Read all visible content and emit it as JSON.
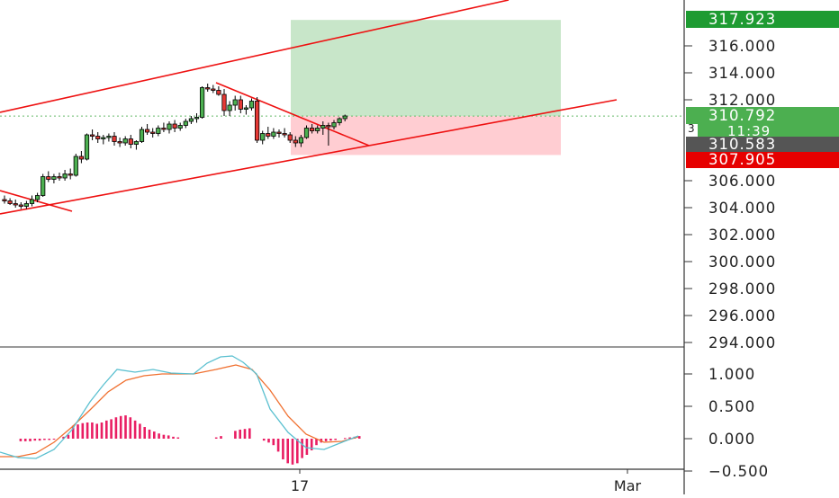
{
  "chart_data": [
    {
      "type": "candlestick",
      "title": "",
      "y_axis_ticks": [
        294,
        296,
        298,
        300,
        302,
        304,
        306,
        312,
        314,
        316
      ],
      "y_axis_tick_labels": [
        "294.000",
        "296.000",
        "298.000",
        "300.000",
        "302.000",
        "304.000",
        "306.000",
        "312.000",
        "314.000",
        "316.000"
      ],
      "ylim": [
        293.8,
        319.5
      ],
      "x_axis_labels": [
        "17",
        "Mar"
      ],
      "grid": false,
      "price_badges": {
        "target": {
          "label": "317.923",
          "value": 317.923,
          "color": "#1e9b32"
        },
        "last": {
          "label": "310.792",
          "value": 310.792,
          "color": "#4caf50"
        },
        "countdown": {
          "label": "11:39",
          "color": "#4caf50"
        },
        "marker": {
          "label": "3"
        },
        "current": {
          "label": "310.583",
          "value": 310.583,
          "color": "#555555"
        },
        "stop": {
          "label": "307.905",
          "value": 307.905,
          "color": "#e60000"
        }
      },
      "position": {
        "entry": 310.792,
        "target": 317.923,
        "stop": 307.905,
        "profit_color": "#c8e6c9",
        "loss_color": "#ffcdd2"
      },
      "trendline_color": "#ee1111",
      "candles": [
        [
          304.6,
          304.9,
          304.3,
          304.5
        ],
        [
          304.5,
          304.7,
          304.2,
          304.3
        ],
        [
          304.3,
          304.6,
          304.0,
          304.2
        ],
        [
          304.2,
          304.4,
          303.9,
          304.1
        ],
        [
          304.1,
          304.5,
          303.9,
          304.3
        ],
        [
          304.3,
          304.9,
          304.1,
          304.6
        ],
        [
          304.6,
          305.1,
          304.4,
          304.9
        ],
        [
          304.9,
          306.5,
          304.8,
          306.3
        ],
        [
          306.3,
          306.7,
          305.9,
          306.1
        ],
        [
          306.1,
          306.5,
          305.8,
          306.3
        ],
        [
          306.3,
          306.6,
          306.0,
          306.2
        ],
        [
          306.2,
          306.8,
          306.0,
          306.5
        ],
        [
          306.5,
          306.9,
          306.1,
          306.4
        ],
        [
          306.4,
          308.0,
          306.3,
          307.8
        ],
        [
          307.8,
          308.2,
          307.3,
          307.6
        ],
        [
          307.6,
          309.5,
          307.5,
          309.4
        ],
        [
          309.4,
          309.8,
          309.0,
          309.3
        ],
        [
          309.3,
          309.6,
          308.8,
          309.1
        ],
        [
          309.1,
          309.4,
          308.7,
          309.2
        ],
        [
          309.2,
          309.5,
          308.9,
          309.3
        ],
        [
          309.3,
          309.6,
          308.6,
          308.9
        ],
        [
          308.9,
          309.2,
          308.5,
          308.8
        ],
        [
          308.8,
          309.3,
          308.6,
          309.1
        ],
        [
          309.1,
          309.4,
          308.4,
          308.7
        ],
        [
          308.7,
          309.0,
          308.3,
          308.9
        ],
        [
          308.9,
          310.0,
          308.8,
          309.8
        ],
        [
          309.8,
          310.2,
          309.4,
          309.6
        ],
        [
          309.6,
          309.9,
          309.2,
          309.5
        ],
        [
          309.5,
          310.1,
          309.3,
          309.9
        ],
        [
          309.9,
          310.3,
          309.6,
          309.8
        ],
        [
          309.8,
          310.4,
          309.5,
          310.2
        ],
        [
          310.2,
          310.5,
          309.6,
          309.9
        ],
        [
          309.9,
          310.3,
          309.7,
          310.1
        ],
        [
          310.1,
          310.6,
          309.9,
          310.4
        ],
        [
          310.4,
          310.8,
          310.2,
          310.6
        ],
        [
          310.6,
          311.0,
          310.3,
          310.7
        ],
        [
          310.7,
          313.0,
          310.6,
          312.9
        ],
        [
          312.9,
          313.2,
          312.6,
          312.8
        ],
        [
          312.8,
          313.1,
          312.5,
          312.7
        ],
        [
          312.7,
          313.0,
          312.3,
          312.4
        ],
        [
          312.4,
          312.8,
          310.8,
          311.2
        ],
        [
          311.2,
          311.9,
          310.8,
          311.6
        ],
        [
          311.6,
          312.3,
          311.2,
          312.0
        ],
        [
          312.0,
          312.3,
          311.0,
          311.3
        ],
        [
          311.3,
          311.6,
          310.9,
          311.4
        ],
        [
          311.4,
          312.1,
          311.2,
          311.9
        ],
        [
          311.9,
          312.2,
          308.8,
          309.0
        ],
        [
          309.0,
          309.7,
          308.7,
          309.5
        ],
        [
          309.5,
          310.0,
          309.1,
          309.3
        ],
        [
          309.3,
          309.9,
          309.1,
          309.6
        ],
        [
          309.6,
          309.8,
          309.2,
          309.5
        ],
        [
          309.5,
          309.9,
          309.2,
          309.4
        ],
        [
          309.4,
          309.6,
          308.8,
          309.0
        ],
        [
          309.0,
          309.3,
          308.5,
          308.8
        ],
        [
          308.8,
          309.4,
          308.5,
          309.2
        ],
        [
          309.2,
          310.1,
          309.1,
          309.9
        ],
        [
          309.9,
          310.2,
          309.5,
          309.7
        ],
        [
          309.7,
          310.1,
          309.5,
          309.9
        ],
        [
          309.9,
          310.4,
          309.4,
          310.1
        ],
        [
          310.1,
          310.3,
          308.6,
          310.0
        ],
        [
          310.0,
          310.5,
          309.8,
          310.3
        ],
        [
          310.3,
          310.7,
          310.1,
          310.6
        ],
        [
          310.6,
          310.9,
          310.4,
          310.8
        ]
      ],
      "macd": {
        "y_axis_ticks": [
          1.0,
          0.5,
          0.0,
          -0.5
        ],
        "y_axis_tick_labels": [
          "1.000",
          "0.500",
          "0.000",
          "−0.500"
        ],
        "ylim": [
          -0.55,
          1.45
        ],
        "macd_line_color": "#5bc0d0",
        "signal_line_color": "#f07030",
        "histogram_color": "#e91e63",
        "histogram": [
          0.0,
          0.0,
          0.0,
          -0.04,
          -0.04,
          -0.04,
          -0.03,
          -0.03,
          -0.02,
          -0.02,
          -0.01,
          0.0,
          0.03,
          0.06,
          0.2,
          0.22,
          0.24,
          0.25,
          0.25,
          0.23,
          0.25,
          0.28,
          0.3,
          0.33,
          0.35,
          0.36,
          0.33,
          0.28,
          0.23,
          0.18,
          0.14,
          0.11,
          0.08,
          0.06,
          0.05,
          0.03,
          0.02,
          0.0,
          0.0,
          0.0,
          0.0,
          0.0,
          0.0,
          0.0,
          0.02,
          0.04,
          0.0,
          0.0,
          0.12,
          0.14,
          0.15,
          0.16,
          0.0,
          0.0,
          -0.03,
          -0.06,
          -0.1,
          -0.2,
          -0.32,
          -0.38,
          -0.4,
          -0.38,
          -0.3,
          -0.25,
          -0.18,
          -0.1,
          -0.06,
          -0.04,
          -0.03,
          -0.02,
          0.0,
          0.01,
          0.02,
          0.03,
          0.04
        ]
      }
    }
  ]
}
